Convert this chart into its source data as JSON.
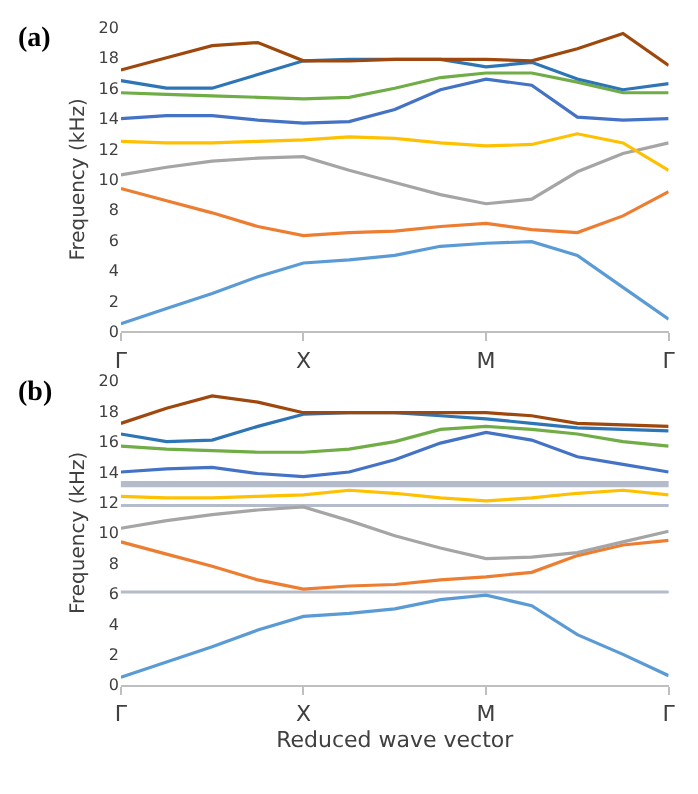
{
  "chart_data": [
    {
      "type": "line",
      "title": "(a)",
      "ylabel": "Frequency (kHz)",
      "categories": [
        "Γ",
        null,
        null,
        null,
        "X",
        null,
        null,
        null,
        "M",
        null,
        null,
        null,
        "Γ"
      ],
      "ylim": [
        0,
        20
      ],
      "yticks": [
        0,
        2,
        4,
        6,
        8,
        10,
        12,
        14,
        16,
        18,
        20
      ],
      "grid": false,
      "marker": "none",
      "line_style": "solid",
      "series": [
        {
          "color": "#5b9bd5",
          "values": [
            0.5,
            1.5,
            2.5,
            3.6,
            4.5,
            4.7,
            5.0,
            5.6,
            5.8,
            5.9,
            5.0,
            2.9,
            0.8
          ]
        },
        {
          "color": "#ed7d31",
          "values": [
            9.4,
            8.6,
            7.8,
            6.9,
            6.3,
            6.5,
            6.6,
            6.9,
            7.1,
            6.7,
            6.5,
            7.6,
            9.2
          ]
        },
        {
          "color": "#a5a5a5",
          "values": [
            10.3,
            10.8,
            11.2,
            11.4,
            11.5,
            10.6,
            9.8,
            9.0,
            8.4,
            8.7,
            10.5,
            11.7,
            12.4
          ]
        },
        {
          "color": "#ffc000",
          "values": [
            12.5,
            12.4,
            12.4,
            12.5,
            12.6,
            12.8,
            12.7,
            12.4,
            12.2,
            12.3,
            13.0,
            12.4,
            10.6
          ]
        },
        {
          "color": "#4472c4",
          "values": [
            14.0,
            14.2,
            14.2,
            13.9,
            13.7,
            13.8,
            14.6,
            15.9,
            16.6,
            16.2,
            14.1,
            13.9,
            14.0
          ]
        },
        {
          "color": "#70ad47",
          "values": [
            15.7,
            15.6,
            15.5,
            15.4,
            15.3,
            15.4,
            16.0,
            16.7,
            17.0,
            17.0,
            16.4,
            15.7,
            15.7
          ]
        },
        {
          "color": "#2e75b6",
          "values": [
            16.5,
            16.0,
            16.0,
            16.9,
            17.8,
            17.9,
            17.9,
            17.9,
            17.4,
            17.7,
            16.6,
            15.9,
            16.3
          ]
        },
        {
          "color": "#9e480e",
          "values": [
            17.2,
            18.0,
            18.8,
            19.0,
            17.8,
            17.8,
            17.9,
            17.9,
            17.9,
            17.8,
            18.6,
            19.6,
            17.5
          ]
        }
      ]
    },
    {
      "type": "line",
      "title": "(b)",
      "xlabel": "Reduced wave vector",
      "ylabel": "Frequency (kHz)",
      "categories": [
        "Γ",
        null,
        null,
        null,
        "X",
        null,
        null,
        null,
        "M",
        null,
        null,
        null,
        "Γ"
      ],
      "ylim": [
        0,
        20
      ],
      "yticks": [
        0,
        2,
        4,
        6,
        8,
        10,
        12,
        14,
        16,
        18,
        20
      ],
      "grid": false,
      "marker": "none",
      "line_style": "solid",
      "bands": [
        {
          "axis": "y",
          "from": 13.0,
          "to": 13.4,
          "color": "#b4bccb"
        },
        {
          "axis": "y",
          "from": 11.7,
          "to": 11.9,
          "color": "#b4bccb"
        },
        {
          "axis": "y",
          "from": 6.0,
          "to": 6.2,
          "color": "#b4bccb"
        }
      ],
      "series": [
        {
          "color": "#5b9bd5",
          "values": [
            0.5,
            1.5,
            2.5,
            3.6,
            4.5,
            4.7,
            5.0,
            5.6,
            5.9,
            5.2,
            3.3,
            2.0,
            0.6
          ]
        },
        {
          "color": "#ed7d31",
          "values": [
            9.4,
            8.6,
            7.8,
            6.9,
            6.3,
            6.5,
            6.6,
            6.9,
            7.1,
            7.4,
            8.5,
            9.2,
            9.5
          ]
        },
        {
          "color": "#a5a5a5",
          "values": [
            10.3,
            10.8,
            11.2,
            11.5,
            11.7,
            10.8,
            9.8,
            9.0,
            8.3,
            8.4,
            8.7,
            9.4,
            10.1
          ]
        },
        {
          "color": "#ffc000",
          "values": [
            12.4,
            12.3,
            12.3,
            12.4,
            12.5,
            12.8,
            12.6,
            12.3,
            12.1,
            12.3,
            12.6,
            12.8,
            12.5
          ]
        },
        {
          "color": "#4472c4",
          "values": [
            14.0,
            14.2,
            14.3,
            13.9,
            13.7,
            14.0,
            14.8,
            15.9,
            16.6,
            16.1,
            15.0,
            14.5,
            14.0
          ]
        },
        {
          "color": "#70ad47",
          "values": [
            15.7,
            15.5,
            15.4,
            15.3,
            15.3,
            15.5,
            16.0,
            16.8,
            17.0,
            16.8,
            16.5,
            16.0,
            15.7
          ]
        },
        {
          "color": "#2e75b6",
          "values": [
            16.5,
            16.0,
            16.1,
            17.0,
            17.8,
            17.9,
            17.9,
            17.7,
            17.5,
            17.2,
            16.9,
            16.8,
            16.7
          ]
        },
        {
          "color": "#9e480e",
          "values": [
            17.2,
            18.2,
            19.0,
            18.6,
            17.9,
            17.9,
            17.9,
            17.9,
            17.9,
            17.7,
            17.2,
            17.1,
            17.0
          ]
        }
      ]
    }
  ]
}
